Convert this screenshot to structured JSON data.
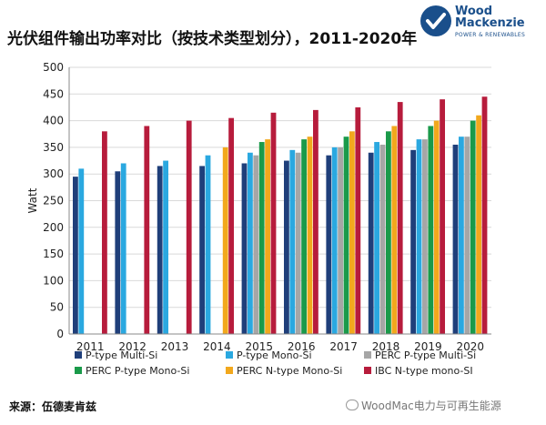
{
  "header": {
    "title": "光伏组件输出功率对比（按技术类型划分），2011-2020年"
  },
  "logo": {
    "line1": "Wood",
    "line2": "Mackenzie",
    "line3": "POWER & RENEWABLES",
    "color": "#1a4f8b"
  },
  "footer": {
    "source": "来源：伍德麦肯兹",
    "watermark": "WoodMac电力与可再生能源"
  },
  "chart_data": {
    "type": "bar",
    "ylabel": "Watt",
    "xlabel": "",
    "ylim": [
      0,
      500
    ],
    "yticks": [
      0,
      50,
      100,
      150,
      200,
      250,
      300,
      350,
      400,
      450,
      500
    ],
    "grid": true,
    "legend_placement": "bottom",
    "categories": [
      "2011",
      "2012",
      "2013",
      "2014",
      "2015",
      "2016",
      "2017",
      "2018",
      "2019",
      "2020"
    ],
    "series": [
      {
        "name": "P-type Multi-Si",
        "color": "#1f3f7a",
        "values": [
          295,
          305,
          315,
          315,
          320,
          325,
          335,
          340,
          345,
          355
        ]
      },
      {
        "name": "P-type Mono-Si",
        "color": "#2aa8e0",
        "values": [
          310,
          320,
          325,
          335,
          340,
          345,
          350,
          360,
          365,
          370
        ]
      },
      {
        "name": "PERC P-type Multi-Si",
        "color": "#a6a6a6",
        "values": [
          null,
          null,
          null,
          null,
          335,
          340,
          350,
          355,
          365,
          370
        ]
      },
      {
        "name": "PERC P-type Mono-Si",
        "color": "#1a9a4a",
        "values": [
          null,
          null,
          null,
          null,
          360,
          365,
          370,
          380,
          390,
          400
        ]
      },
      {
        "name": "PERC N-type Mono-Si",
        "color": "#f2a81d",
        "values": [
          null,
          null,
          null,
          350,
          365,
          370,
          380,
          390,
          400,
          410
        ]
      },
      {
        "name": "IBC N-type mono-SI",
        "color": "#b71c3c",
        "values": [
          380,
          390,
          400,
          405,
          415,
          420,
          425,
          435,
          440,
          445
        ]
      }
    ]
  }
}
